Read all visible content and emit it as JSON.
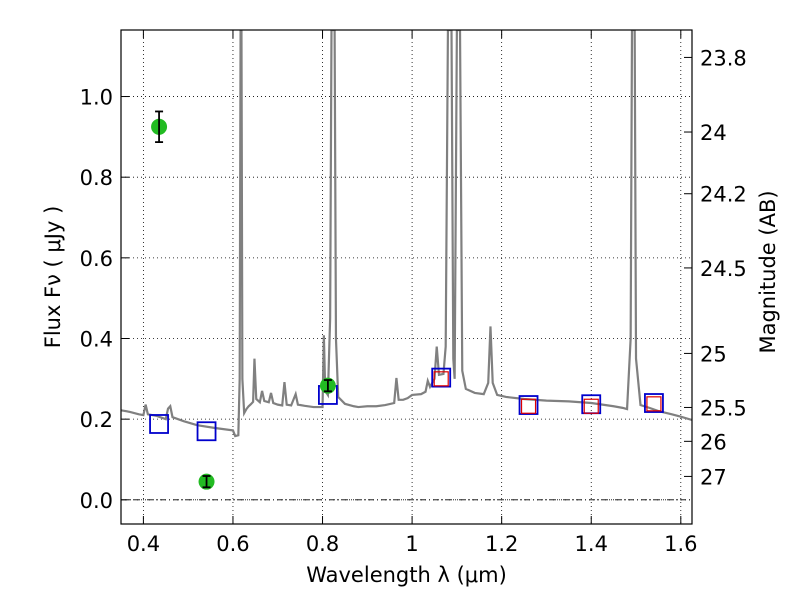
{
  "chart_data": {
    "type": "scatter",
    "xlabel": "Wavelength  λ (μm)",
    "ylabel": "Flux  Fν  ( μJy )",
    "y2label": "Magnitude (AB)",
    "xlim": [
      0.35,
      1.625
    ],
    "ylim": [
      -0.06,
      1.165
    ],
    "x_ticks": [
      0.4,
      0.6,
      0.8,
      1.0,
      1.2,
      1.4,
      1.6
    ],
    "x_tick_labels": [
      "0.4",
      "0.6",
      "0.8",
      "1",
      "1.2",
      "1.4",
      "1.6"
    ],
    "y_ticks": [
      0.0,
      0.2,
      0.4,
      0.6,
      0.8,
      1.0
    ],
    "y_tick_labels": [
      "0.0",
      "0.2",
      "0.4",
      "0.6",
      "0.8",
      "1.0"
    ],
    "y2_tick_labels": [
      {
        "label": "23.8",
        "flux": 1.097
      },
      {
        "label": "24",
        "flux": 0.912
      },
      {
        "label": "24.2",
        "flux": 0.759
      },
      {
        "label": "24.5",
        "flux": 0.575
      },
      {
        "label": "25",
        "flux": 0.363
      },
      {
        "label": "25.5",
        "flux": 0.229
      },
      {
        "label": "26",
        "flux": 0.145
      },
      {
        "label": "27",
        "flux": 0.058
      }
    ],
    "grid": true,
    "colors": {
      "spectrum": "#808080",
      "observed_points": "#22bb22",
      "model_box_blue": "#0000cc",
      "model_box_red": "#dd0000",
      "errorbar": "#000000"
    },
    "series": [
      {
        "type": "line",
        "points": [
          [
            0.35,
            0.222
          ],
          [
            0.37,
            0.218
          ],
          [
            0.39,
            0.212
          ],
          [
            0.4,
            0.21
          ],
          [
            0.405,
            0.236
          ],
          [
            0.41,
            0.212
          ],
          [
            0.43,
            0.208
          ],
          [
            0.45,
            0.2
          ],
          [
            0.455,
            0.226
          ],
          [
            0.46,
            0.232
          ],
          [
            0.465,
            0.205
          ],
          [
            0.49,
            0.195
          ],
          [
            0.52,
            0.185
          ],
          [
            0.56,
            0.178
          ],
          [
            0.6,
            0.172
          ],
          [
            0.605,
            0.158
          ],
          [
            0.612,
            0.16
          ],
          [
            0.615,
            0.3
          ],
          [
            0.617,
            1.165
          ],
          [
            0.619,
            1.165
          ],
          [
            0.621,
            0.3
          ],
          [
            0.625,
            0.215
          ],
          [
            0.63,
            0.225
          ],
          [
            0.635,
            0.232
          ],
          [
            0.64,
            0.237
          ],
          [
            0.645,
            0.243
          ],
          [
            0.648,
            0.35
          ],
          [
            0.652,
            0.25
          ],
          [
            0.66,
            0.242
          ],
          [
            0.665,
            0.27
          ],
          [
            0.67,
            0.245
          ],
          [
            0.68,
            0.242
          ],
          [
            0.685,
            0.265
          ],
          [
            0.69,
            0.24
          ],
          [
            0.7,
            0.236
          ],
          [
            0.71,
            0.234
          ],
          [
            0.715,
            0.292
          ],
          [
            0.72,
            0.236
          ],
          [
            0.73,
            0.234
          ],
          [
            0.74,
            0.262
          ],
          [
            0.745,
            0.236
          ],
          [
            0.76,
            0.233
          ],
          [
            0.78,
            0.23
          ],
          [
            0.8,
            0.23
          ],
          [
            0.803,
            0.408
          ],
          [
            0.806,
            0.27
          ],
          [
            0.812,
            0.26
          ],
          [
            0.817,
            0.45
          ],
          [
            0.82,
            1.165
          ],
          [
            0.824,
            1.165
          ],
          [
            0.827,
            1.165
          ],
          [
            0.83,
            0.4
          ],
          [
            0.835,
            0.255
          ],
          [
            0.85,
            0.238
          ],
          [
            0.87,
            0.232
          ],
          [
            0.88,
            0.23
          ],
          [
            0.9,
            0.232
          ],
          [
            0.92,
            0.232
          ],
          [
            0.94,
            0.235
          ],
          [
            0.96,
            0.24
          ],
          [
            0.965,
            0.302
          ],
          [
            0.97,
            0.248
          ],
          [
            0.98,
            0.248
          ],
          [
            0.99,
            0.252
          ],
          [
            1.0,
            0.26
          ],
          [
            1.02,
            0.262
          ],
          [
            1.03,
            0.268
          ],
          [
            1.035,
            0.295
          ],
          [
            1.04,
            0.28
          ],
          [
            1.05,
            0.3
          ],
          [
            1.055,
            0.38
          ],
          [
            1.06,
            0.31
          ],
          [
            1.07,
            0.312
          ],
          [
            1.075,
            0.38
          ],
          [
            1.08,
            1.165
          ],
          [
            1.088,
            1.165
          ],
          [
            1.092,
            0.35
          ],
          [
            1.095,
            0.3
          ],
          [
            1.1,
            1.165
          ],
          [
            1.107,
            1.165
          ],
          [
            1.112,
            0.32
          ],
          [
            1.12,
            0.275
          ],
          [
            1.14,
            0.265
          ],
          [
            1.16,
            0.262
          ],
          [
            1.17,
            0.29
          ],
          [
            1.175,
            0.43
          ],
          [
            1.18,
            0.29
          ],
          [
            1.19,
            0.26
          ],
          [
            1.21,
            0.255
          ],
          [
            1.25,
            0.25
          ],
          [
            1.3,
            0.246
          ],
          [
            1.35,
            0.244
          ],
          [
            1.4,
            0.24
          ],
          [
            1.45,
            0.232
          ],
          [
            1.47,
            0.228
          ],
          [
            1.48,
            0.225
          ],
          [
            1.488,
            0.4
          ],
          [
            1.491,
            1.165
          ],
          [
            1.497,
            1.165
          ],
          [
            1.5,
            0.35
          ],
          [
            1.51,
            0.235
          ],
          [
            1.53,
            0.228
          ],
          [
            1.55,
            0.22
          ],
          [
            1.58,
            0.212
          ],
          [
            1.6,
            0.206
          ],
          [
            1.625,
            0.198
          ]
        ]
      },
      {
        "type": "scatter",
        "marker": "circle-errorbar",
        "points": [
          {
            "x": 0.435,
            "y": 0.925,
            "err": 0.038
          },
          {
            "x": 0.541,
            "y": 0.045,
            "err": 0.014
          },
          {
            "x": 0.812,
            "y": 0.283,
            "err": 0.014
          }
        ]
      },
      {
        "type": "scatter",
        "marker": "square-blue",
        "points": [
          [
            0.435,
            0.188
          ],
          [
            0.541,
            0.17
          ],
          [
            0.812,
            0.26
          ],
          [
            1.065,
            0.303
          ],
          [
            1.26,
            0.235
          ],
          [
            1.4,
            0.237
          ],
          [
            1.54,
            0.24
          ]
        ]
      },
      {
        "type": "scatter",
        "marker": "square-red",
        "points": [
          [
            1.065,
            0.3
          ],
          [
            1.26,
            0.232
          ],
          [
            1.4,
            0.232
          ],
          [
            1.54,
            0.238
          ]
        ]
      }
    ]
  }
}
